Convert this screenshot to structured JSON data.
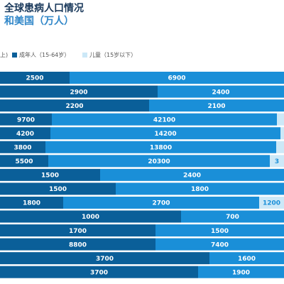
{
  "chart_data": {
    "type": "bar",
    "orientation": "horizontal",
    "stacked": true,
    "normalized": true,
    "title": "全球患病人口情况",
    "subtitle": "和美国（万人）",
    "legend": {
      "placement": "top",
      "items": [
        "上)",
        "成年人（15-64岁）",
        "儿童（15岁以下）"
      ]
    },
    "series": [
      {
        "name": "上)",
        "color": "#0a5f99",
        "values": [
          2500,
          2900,
          2200,
          9700,
          4200,
          3800,
          5500,
          1500,
          1500,
          1800,
          1000,
          1700,
          8800,
          3700,
          3700
        ]
      },
      {
        "name": "成年人（15-64岁）",
        "color": "#1a8fd8",
        "values": [
          6900,
          2400,
          2100,
          42100,
          14200,
          13800,
          20300,
          2400,
          1800,
          2700,
          700,
          1500,
          7400,
          1600,
          1900
        ]
      },
      {
        "name": "儿童（15岁以下）",
        "color": "#cce8f7",
        "values": [
          null,
          null,
          null,
          null,
          null,
          null,
          null,
          null,
          null,
          1200,
          null,
          null,
          null,
          null,
          null
        ]
      }
    ],
    "visible_labels": [
      [
        "2500",
        "6900",
        ""
      ],
      [
        "2900",
        "2400",
        ""
      ],
      [
        "2200",
        "2100",
        ""
      ],
      [
        "9700",
        "42100",
        ""
      ],
      [
        "4200",
        "14200",
        ""
      ],
      [
        "3800",
        "13800",
        ""
      ],
      [
        "5500",
        "20300",
        "3"
      ],
      [
        "1500",
        "2400",
        ""
      ],
      [
        "1500",
        "1800",
        ""
      ],
      [
        "1800",
        "2700",
        "1200"
      ],
      [
        "1000",
        "700",
        ""
      ],
      [
        "1700",
        "1500",
        ""
      ],
      [
        "8800",
        "7400",
        ""
      ],
      [
        "3700",
        "1600",
        ""
      ],
      [
        "3700",
        "1900",
        ""
      ]
    ],
    "segment_end_fraction": [
      [
        0.245,
        1.0,
        1.0
      ],
      [
        0.555,
        1.0,
        1.0
      ],
      [
        0.525,
        1.0,
        1.0
      ],
      [
        0.1825,
        0.975,
        1.0
      ],
      [
        0.1775,
        0.9875,
        1.0
      ],
      [
        0.16,
        0.9725,
        1.0
      ],
      [
        0.17,
        0.95,
        1.0
      ],
      [
        0.3525,
        1.0,
        1.0
      ],
      [
        0.4075,
        1.0,
        1.0
      ],
      [
        0.2225,
        0.9125,
        1.0
      ],
      [
        0.6375,
        1.0,
        1.0
      ],
      [
        0.5475,
        1.0,
        1.0
      ],
      [
        0.5475,
        1.0,
        1.0
      ],
      [
        0.7375,
        1.0,
        1.0
      ],
      [
        0.6975,
        1.0,
        1.0
      ]
    ]
  }
}
